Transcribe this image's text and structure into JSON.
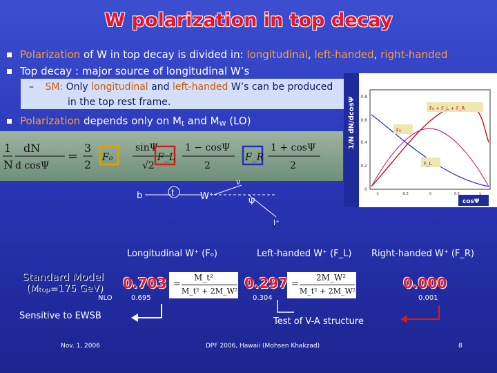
{
  "title": "W polarization in top decay",
  "bullets": [
    {
      "pre": "",
      "hl": "Polarization",
      "mid": " of W in top decay is divided in: ",
      "hl2": "longitudinal",
      "sep1": ", ",
      "hl3": "left-handed",
      "sep2": ", ",
      "hl4": "right-handed"
    },
    {
      "pre": "Top decay : major source of longitudinal W’s"
    }
  ],
  "dash": {
    "sm": "SM:",
    "t1": " Only ",
    "long": "longitudinal",
    "t2": " and ",
    "left": "left-handed",
    "t3": " W’s can be produced",
    "t4": "in the top rest frame."
  },
  "bullet3": {
    "hl": "Polarization",
    "t": " depends only on M",
    "sub1": "t",
    "t2": " and M",
    "sub2": "W",
    "t3": " (LO)"
  },
  "plot": {
    "ylabel": "1/N dN/dcosΨ",
    "xlabel": "cosΨ",
    "legend_sum": "F₀ + F_L + F_R",
    "legend_f0": "F₀",
    "legend_fl": "F_L",
    "yticks": [
      "0.8",
      "0.6",
      "0.4",
      "0.2",
      "0"
    ],
    "xticks": [
      "-1",
      "-0.5",
      "0",
      "0.5",
      "1"
    ]
  },
  "equation": {
    "lhs_num": "1",
    "lhs_den": "N",
    "d1": "dN",
    "d2": "d cosΨ",
    "eq": "=",
    "three": "3",
    "two": "2",
    "f0": "F₀",
    "fl": "F_L",
    "fr": "F_R",
    "t1_num": "sinΨ",
    "t1_den": "√2",
    "t2_num": "1 − cosΨ",
    "t2_den": "2",
    "t3_num": "1 + cosΨ",
    "t3_den": "2"
  },
  "diagram": {
    "b": "b",
    "t": "t",
    "w": "W⁺",
    "nu": "ν",
    "psi": "Ψ",
    "l": "l⁺"
  },
  "table": {
    "h_long": "Longitudinal W⁺ (F₀)",
    "h_left": "Left-handed W⁺ (F_L)",
    "h_right": "Right-handed W⁺ (F_R)",
    "sm": "Standard Model",
    "mtop": "(M",
    "mtop_sub": "top",
    "mtop_val": "=175 GeV)",
    "nlo": "NLO",
    "v0": "0.703",
    "vl": "0.297",
    "vr": "0.000",
    "n0": "0.695",
    "nl": "0.304",
    "nr": "0.001",
    "f0_num": "M_t²",
    "f0_den": "M_t² + 2M_W²",
    "fl_num": "2M_W²",
    "fl_den": "M_t² + 2M_W²"
  },
  "notes": {
    "ewsb": "Sensitive to EWSB",
    "va": "Test of V-A structure"
  },
  "footer": {
    "date": "Nov. 1, 2006",
    "conf": "DPF 2006, Hawaii (Mohsen Khakzad)",
    "page": "8"
  }
}
